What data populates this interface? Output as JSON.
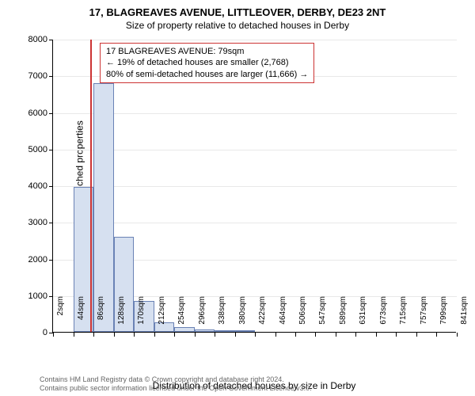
{
  "title": "17, BLAGREAVES AVENUE, LITTLEOVER, DERBY, DE23 2NT",
  "subtitle": "Size of property relative to detached houses in Derby",
  "chart": {
    "type": "histogram",
    "ylabel": "Number of detached properties",
    "xlabel": "Distribution of detached houses by size in Derby",
    "ylim": [
      0,
      8000
    ],
    "ytick_step": 1000,
    "yticks": [
      0,
      1000,
      2000,
      3000,
      4000,
      5000,
      6000,
      7000,
      8000
    ],
    "xticks": [
      "2sqm",
      "44sqm",
      "86sqm",
      "128sqm",
      "170sqm",
      "212sqm",
      "254sqm",
      "296sqm",
      "338sqm",
      "380sqm",
      "422sqm",
      "464sqm",
      "506sqm",
      "547sqm",
      "589sqm",
      "631sqm",
      "673sqm",
      "715sqm",
      "757sqm",
      "799sqm",
      "841sqm"
    ],
    "bar_fill": "#d6e0f0",
    "bar_stroke": "#6a82b5",
    "grid_color": "#e8e8e8",
    "background_color": "#ffffff",
    "marker_color": "#cc3333",
    "marker_x": 79,
    "x_range": [
      2,
      841
    ],
    "bars": [
      {
        "x0": 44,
        "x1": 86,
        "value": 3950
      },
      {
        "x0": 86,
        "x1": 128,
        "value": 6800
      },
      {
        "x0": 128,
        "x1": 170,
        "value": 2600
      },
      {
        "x0": 170,
        "x1": 212,
        "value": 850
      },
      {
        "x0": 212,
        "x1": 254,
        "value": 250
      },
      {
        "x0": 254,
        "x1": 296,
        "value": 120
      },
      {
        "x0": 296,
        "x1": 338,
        "value": 70
      },
      {
        "x0": 338,
        "x1": 380,
        "value": 50
      },
      {
        "x0": 380,
        "x1": 422,
        "value": 40
      }
    ]
  },
  "info_box": {
    "line1": "17 BLAGREAVES AVENUE: 79sqm",
    "line2": "← 19% of detached houses are smaller (2,768)",
    "line3": "80% of semi-detached houses are larger (11,666) →"
  },
  "footer": {
    "line1": "Contains HM Land Registry data © Crown copyright and database right 2024.",
    "line2": "Contains public sector information licensed under the Open Government Licence v3.0."
  }
}
